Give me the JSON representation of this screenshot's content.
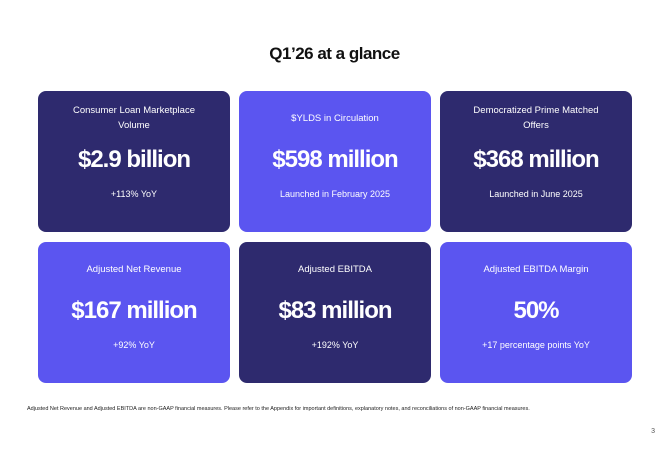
{
  "header": {
    "title": "Q1’26 at a glance"
  },
  "cards": [
    {
      "label": "Consumer Loan Marketplace Volume",
      "value": "$2.9 billion",
      "note": "+113% YoY"
    },
    {
      "label": "$YLDS in Circulation",
      "value": "$598 million",
      "note": "Launched in February 2025"
    },
    {
      "label": "Democratized Prime Matched Offers",
      "value": "$368 million",
      "note": "Launched in June 2025"
    },
    {
      "label": "Adjusted Net Revenue",
      "value": "$167 million",
      "note": "+92% YoY"
    },
    {
      "label": "Adjusted EBITDA",
      "value": "$83 million",
      "note": "+192% YoY"
    },
    {
      "label": "Adjusted EBITDA Margin",
      "value": "50%",
      "note": "+17 percentage points YoY"
    }
  ],
  "footnote": "Adjusted Net Revenue and Adjusted EBITDA are non-GAAP financial measures. Please refer to the Appendix for important definitions, explanatory notes, and reconciliations of non-GAAP financial measures.",
  "page_number": "3"
}
